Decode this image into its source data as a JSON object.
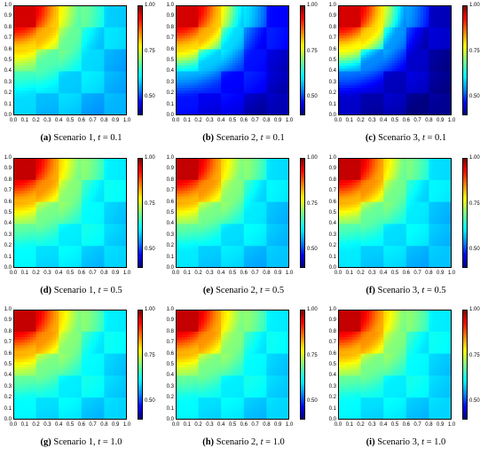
{
  "chart_data": [
    {
      "type": "heatmap",
      "label": "(a)",
      "caption": "Scenario 1,",
      "t_symbol": "t",
      "t_value": "= 0.1",
      "scenario": 1,
      "t": 0.1,
      "background_level": 0.58,
      "front_levels": [
        0.95,
        0.82,
        0.7,
        0.62
      ],
      "xlim": [
        0,
        1
      ],
      "ylim": [
        0,
        1
      ],
      "clim": [
        0.4,
        1.0
      ]
    },
    {
      "type": "heatmap",
      "label": "(b)",
      "caption": "Scenario 2,",
      "t_symbol": "t",
      "t_value": "= 0.1",
      "scenario": 2,
      "t": 0.1,
      "background_level": 0.43,
      "front_levels": [
        0.95,
        0.82,
        0.62,
        0.5
      ],
      "xlim": [
        0,
        1
      ],
      "ylim": [
        0,
        1
      ],
      "clim": [
        0.4,
        1.0
      ]
    },
    {
      "type": "heatmap",
      "label": "(c)",
      "caption": "Scenario 3,",
      "t_symbol": "t",
      "t_value": "= 0.1",
      "scenario": 3,
      "t": 0.1,
      "background_level": 0.41,
      "front_levels": [
        0.95,
        0.8,
        0.58,
        0.46
      ],
      "xlim": [
        0,
        1
      ],
      "ylim": [
        0,
        1
      ],
      "clim": [
        0.4,
        1.0
      ]
    },
    {
      "type": "heatmap",
      "label": "(d)",
      "caption": "Scenario 1,",
      "t_symbol": "t",
      "t_value": "= 0.5",
      "scenario": 1,
      "t": 0.5,
      "background_level": 0.6,
      "front_levels": [
        0.96,
        0.84,
        0.72,
        0.64
      ],
      "xlim": [
        0,
        1
      ],
      "ylim": [
        0,
        1
      ],
      "clim": [
        0.4,
        1.0
      ]
    },
    {
      "type": "heatmap",
      "label": "(e)",
      "caption": "Scenario 2,",
      "t_symbol": "t",
      "t_value": "= 0.5",
      "scenario": 2,
      "t": 0.5,
      "background_level": 0.59,
      "front_levels": [
        0.96,
        0.84,
        0.72,
        0.63
      ],
      "xlim": [
        0,
        1
      ],
      "ylim": [
        0,
        1
      ],
      "clim": [
        0.4,
        1.0
      ]
    },
    {
      "type": "heatmap",
      "label": "(f)",
      "caption": "Scenario 3,",
      "t_symbol": "t",
      "t_value": "= 0.5",
      "scenario": 3,
      "t": 0.5,
      "background_level": 0.59,
      "front_levels": [
        0.96,
        0.84,
        0.71,
        0.63
      ],
      "xlim": [
        0,
        1
      ],
      "ylim": [
        0,
        1
      ],
      "clim": [
        0.4,
        1.0
      ]
    },
    {
      "type": "heatmap",
      "label": "(g)",
      "caption": "Scenario 1,",
      "t_symbol": "t",
      "t_value": "= 1.0",
      "scenario": 1,
      "t": 1.0,
      "background_level": 0.6,
      "front_levels": [
        0.96,
        0.84,
        0.72,
        0.64
      ],
      "xlim": [
        0,
        1
      ],
      "ylim": [
        0,
        1
      ],
      "clim": [
        0.4,
        1.0
      ]
    },
    {
      "type": "heatmap",
      "label": "(h)",
      "caption": "Scenario 2,",
      "t_symbol": "t",
      "t_value": "= 1.0",
      "scenario": 2,
      "t": 1.0,
      "background_level": 0.6,
      "front_levels": [
        0.96,
        0.84,
        0.72,
        0.64
      ],
      "xlim": [
        0,
        1
      ],
      "ylim": [
        0,
        1
      ],
      "clim": [
        0.4,
        1.0
      ]
    },
    {
      "type": "heatmap",
      "label": "(i)",
      "caption": "Scenario 3,",
      "t_symbol": "t",
      "t_value": "= 1.0",
      "scenario": 3,
      "t": 1.0,
      "background_level": 0.6,
      "front_levels": [
        0.96,
        0.84,
        0.72,
        0.64
      ],
      "xlim": [
        0,
        1
      ],
      "ylim": [
        0,
        1
      ],
      "clim": [
        0.4,
        1.0
      ]
    }
  ],
  "x_ticks": [
    "0.0",
    "0.1",
    "0.2",
    "0.3",
    "0.4",
    "0.5",
    "0.6",
    "0.7",
    "0.8",
    "0.9",
    "1.0"
  ],
  "y_ticks": [
    "0.0",
    "0.1",
    "0.2",
    "0.3",
    "0.4",
    "0.5",
    "0.6",
    "0.7",
    "0.8",
    "0.9",
    "1.0"
  ],
  "colorbar_ticks": [
    "1.00",
    "0.75",
    "0.50"
  ],
  "colorbar_tick_values": [
    1.0,
    0.75,
    0.5
  ],
  "colormap": "jet",
  "grid": false
}
